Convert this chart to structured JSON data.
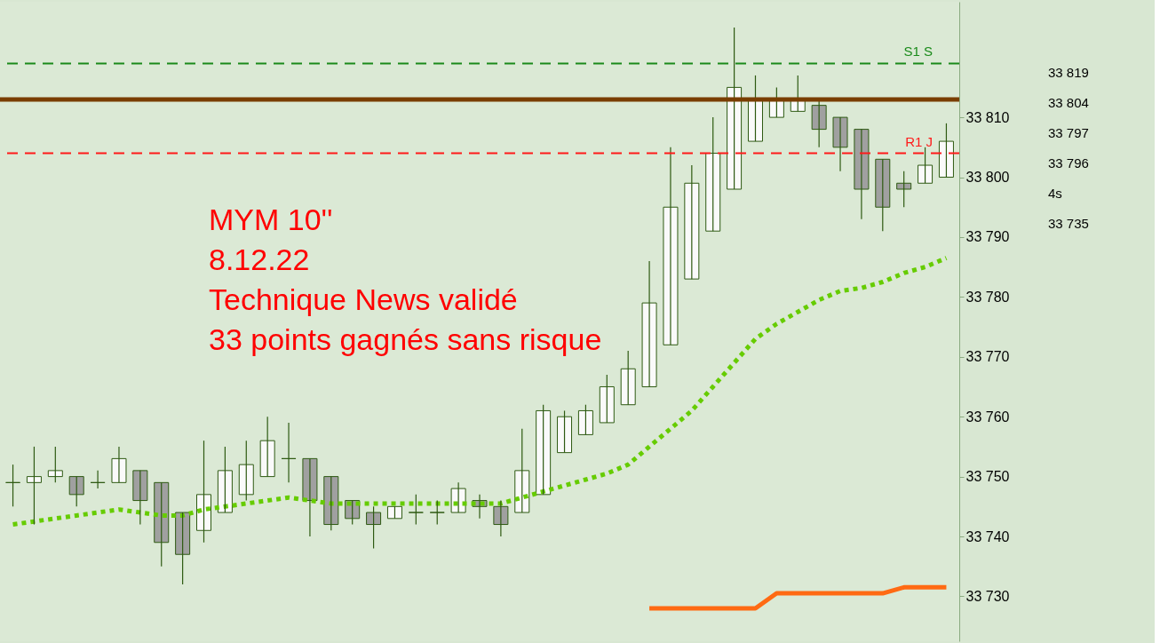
{
  "chart_data": {
    "type": "candlestick",
    "categories": [
      null,
      null,
      null,
      null,
      null,
      null,
      null,
      null,
      null,
      null,
      null,
      null,
      null,
      null,
      null,
      null,
      null,
      null,
      null,
      null,
      null,
      null,
      null,
      null,
      null,
      null,
      null,
      null,
      null,
      null,
      null,
      null,
      null,
      null,
      null,
      null,
      null,
      null,
      null,
      null,
      null,
      null,
      null,
      null,
      null
    ],
    "ohlc": [
      [
        33749,
        33752,
        33745,
        33749
      ],
      [
        33749,
        33755,
        33742,
        33750
      ],
      [
        33750,
        33755,
        33749,
        33751
      ],
      [
        33750,
        33750,
        33745,
        33747
      ],
      [
        33749,
        33751,
        33748,
        33749
      ],
      [
        33749,
        33755,
        33749,
        33753
      ],
      [
        33751,
        33751,
        33742,
        33746
      ],
      [
        33749,
        33749,
        33735,
        33739
      ],
      [
        33744,
        33744,
        33732,
        33737
      ],
      [
        33741,
        33756,
        33739,
        33747
      ],
      [
        33744,
        33755,
        33744,
        33751
      ],
      [
        33747,
        33756,
        33746,
        33752
      ],
      [
        33750,
        33760,
        33750,
        33756
      ],
      [
        33753,
        33759,
        33749,
        33753
      ],
      [
        33753,
        33753,
        33740,
        33746
      ],
      [
        33750,
        33750,
        33741,
        33742
      ],
      [
        33746,
        33746,
        33742,
        33743
      ],
      [
        33744,
        33745,
        33738,
        33742
      ],
      [
        33743,
        33745,
        33743,
        33745
      ],
      [
        33744,
        33747,
        33742,
        33744
      ],
      [
        33744,
        33746,
        33742,
        33744
      ],
      [
        33744,
        33749,
        33744,
        33748
      ],
      [
        33746,
        33747,
        33743,
        33745
      ],
      [
        33745,
        33746,
        33740,
        33742
      ],
      [
        33744,
        33758,
        33744,
        33751
      ],
      [
        33747,
        33762,
        33747,
        33761
      ],
      [
        33754,
        33761,
        33754,
        33760
      ],
      [
        33757,
        33762,
        33757,
        33761
      ],
      [
        33759,
        33767,
        33759,
        33765
      ],
      [
        33762,
        33771,
        33762,
        33768
      ],
      [
        33765,
        33786,
        33765,
        33779
      ],
      [
        33772,
        33805,
        33772,
        33795
      ],
      [
        33783,
        33802,
        33783,
        33799
      ],
      [
        33791,
        33810,
        33791,
        33804
      ],
      [
        33798,
        33825,
        33798,
        33815
      ],
      [
        33806,
        33817,
        33806,
        33813
      ],
      [
        33810,
        33815,
        33810,
        33813
      ],
      [
        33811,
        33817,
        33811,
        33813
      ],
      [
        33812,
        33813,
        33805,
        33808
      ],
      [
        33810,
        33810,
        33801,
        33805
      ],
      [
        33808,
        33808,
        33793,
        33798
      ],
      [
        33803,
        33803,
        33791,
        33795
      ],
      [
        33799,
        33801,
        33795,
        33798
      ],
      [
        33799,
        33805,
        33799,
        33802
      ],
      [
        33800,
        33809,
        33800,
        33806
      ]
    ],
    "series": [
      {
        "type": "line",
        "color": "#66cc00",
        "line_style": "dotted",
        "values": [
          33742,
          33742.5,
          33743,
          33743.5,
          33744,
          33744.5,
          33744,
          33743.5,
          33743.5,
          33744.5,
          33745,
          33745.5,
          33746,
          33746.5,
          33746,
          33745.5,
          33745.5,
          33745.5,
          33745.5,
          33745.5,
          33745.5,
          33745.5,
          33745.5,
          33745.5,
          33746.5,
          33747.5,
          33748.5,
          33749.5,
          33750.5,
          33752,
          33755,
          33758,
          33761,
          33765,
          33769,
          33773,
          33775.5,
          33777.5,
          33779.5,
          33781,
          33781.5,
          33782.5,
          33784,
          33785,
          33786.5
        ]
      },
      {
        "type": "line",
        "color": "#ff6a13",
        "line_style": "solid",
        "values": [
          null,
          null,
          null,
          null,
          null,
          null,
          null,
          null,
          null,
          null,
          null,
          null,
          null,
          null,
          null,
          null,
          null,
          null,
          null,
          null,
          null,
          null,
          null,
          null,
          null,
          null,
          null,
          null,
          null,
          null,
          33728,
          33728,
          33728,
          33728,
          33728,
          33728,
          33730.5,
          33730.5,
          33730.5,
          33730.5,
          33730.5,
          33730.5,
          33731.5,
          33731.5,
          33731.5
        ]
      }
    ],
    "ylim": [
      33722.5,
      33829.3
    ],
    "yticks": [
      {
        "value": 33730,
        "label": "33 730"
      },
      {
        "value": 33740,
        "label": "33 740"
      },
      {
        "value": 33750,
        "label": "33 750"
      },
      {
        "value": 33760,
        "label": "33 760"
      },
      {
        "value": 33770,
        "label": "33 770"
      },
      {
        "value": 33780,
        "label": "33 780"
      },
      {
        "value": 33790,
        "label": "33 790"
      },
      {
        "value": 33800,
        "label": "33 800"
      },
      {
        "value": 33810,
        "label": "33 810"
      }
    ],
    "ref_lines": [
      {
        "axis": "y",
        "value": 33819,
        "label": "S1 S",
        "color": "#1a8a1a",
        "line_style": "dashed"
      },
      {
        "axis": "y",
        "value": 33813,
        "label": null,
        "color": "#7a3e00",
        "line_style": "solid"
      },
      {
        "axis": "y",
        "value": 33804,
        "label": "R1 J",
        "color": "#ff1a1a",
        "line_style": "dashed"
      }
    ],
    "annotations": [
      "MYM 10''",
      "8.12.22",
      "Technique News validé",
      "33 points gagnés sans risque",
      "33 819",
      "33 804",
      "33 797",
      "33 796",
      "4s",
      "33 735"
    ],
    "grid": false
  }
}
